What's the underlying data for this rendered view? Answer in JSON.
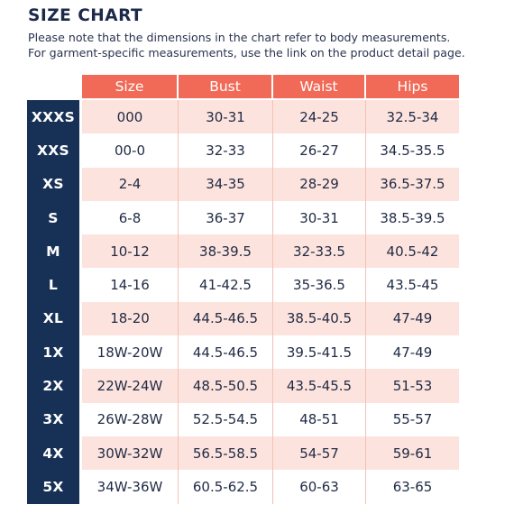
{
  "title": "SIZE CHART",
  "note_line1": "Please note that the dimensions in the chart refer to body measurements.",
  "note_line2": "For garment-specific measurements, use the link on the product detail page.",
  "headers": [
    "Size",
    "Bust",
    "Waist",
    "Hips"
  ],
  "colors": {
    "header_bg": "#f06a57",
    "sidebar_bg": "#173156",
    "row_shade": "#fde3dd"
  },
  "rows": [
    {
      "label": "XXXS",
      "size": "000",
      "bust": "30-31",
      "waist": "24-25",
      "hips": "32.5-34"
    },
    {
      "label": "XXS",
      "size": "00-0",
      "bust": "32-33",
      "waist": "26-27",
      "hips": "34.5-35.5"
    },
    {
      "label": "XS",
      "size": "2-4",
      "bust": "34-35",
      "waist": "28-29",
      "hips": "36.5-37.5"
    },
    {
      "label": "S",
      "size": "6-8",
      "bust": "36-37",
      "waist": "30-31",
      "hips": "38.5-39.5"
    },
    {
      "label": "M",
      "size": "10-12",
      "bust": "38-39.5",
      "waist": "32-33.5",
      "hips": "40.5-42"
    },
    {
      "label": "L",
      "size": "14-16",
      "bust": "41-42.5",
      "waist": "35-36.5",
      "hips": "43.5-45"
    },
    {
      "label": "XL",
      "size": "18-20",
      "bust": "44.5-46.5",
      "waist": "38.5-40.5",
      "hips": "47-49"
    },
    {
      "label": "1X",
      "size": "18W-20W",
      "bust": "44.5-46.5",
      "waist": "39.5-41.5",
      "hips": "47-49"
    },
    {
      "label": "2X",
      "size": "22W-24W",
      "bust": "48.5-50.5",
      "waist": "43.5-45.5",
      "hips": "51-53"
    },
    {
      "label": "3X",
      "size": "26W-28W",
      "bust": "52.5-54.5",
      "waist": "48-51",
      "hips": "55-57"
    },
    {
      "label": "4X",
      "size": "30W-32W",
      "bust": "56.5-58.5",
      "waist": "54-57",
      "hips": "59-61"
    },
    {
      "label": "5X",
      "size": "34W-36W",
      "bust": "60.5-62.5",
      "waist": "60-63",
      "hips": "63-65"
    }
  ]
}
